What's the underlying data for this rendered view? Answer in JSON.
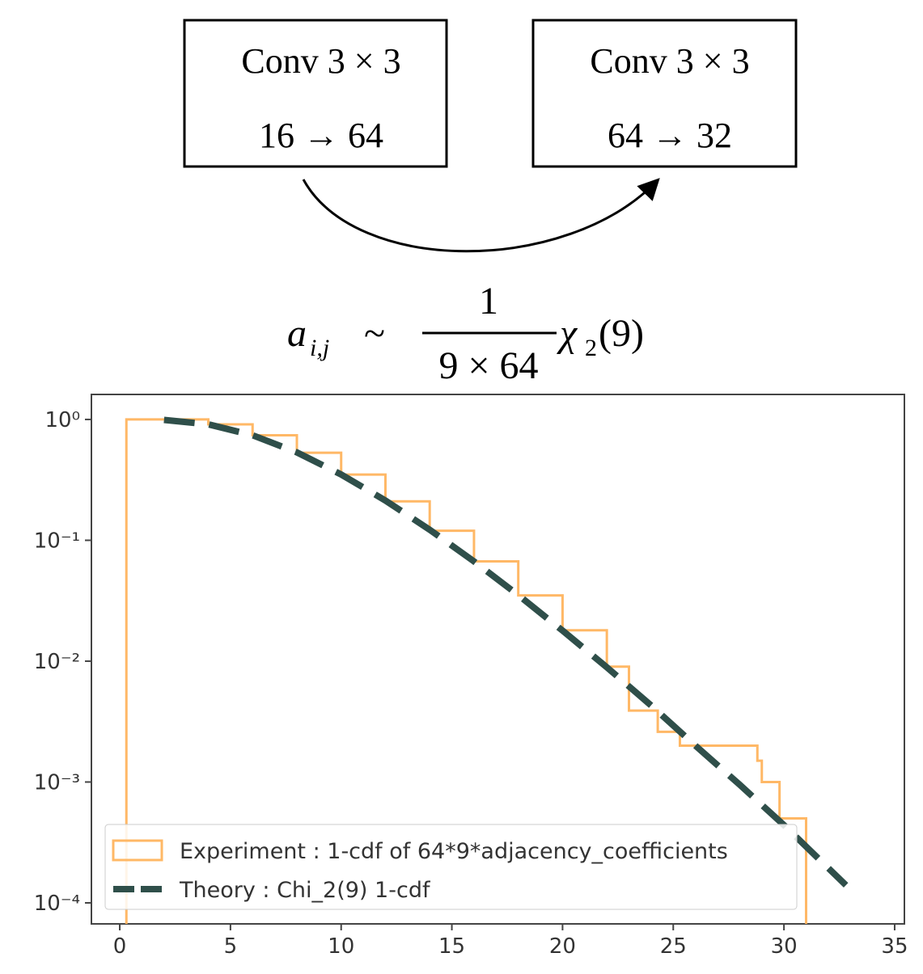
{
  "diagram": {
    "nodes": [
      {
        "label": "Conv 3 × 3",
        "sublabel": "16 → 64"
      },
      {
        "label": "Conv 3 × 3",
        "sublabel": "64 → 32"
      }
    ],
    "formula": {
      "lhs": "a",
      "lhs_sub": "i,j",
      "relation": "~",
      "numerator": "1",
      "denominator": "9 × 64",
      "dist": "χ",
      "dist_sub": "2",
      "arg": "(9)"
    }
  },
  "chart_data": {
    "type": "line",
    "log_y": true,
    "grid": false,
    "legend": "lower left",
    "xlim": [
      -1.28,
      35.44
    ],
    "xticks": [
      0,
      5,
      10,
      15,
      20,
      25,
      30,
      35
    ],
    "ylim": [
      1.61,
      6.7e-05
    ],
    "yticks": [
      {
        "value": 1,
        "label": "10⁰"
      },
      {
        "value": 0.1,
        "label": "10⁻¹"
      },
      {
        "value": 0.01,
        "label": "10⁻²"
      },
      {
        "value": 0.001,
        "label": "10⁻³"
      },
      {
        "value": 0.0001,
        "label": "10⁻⁴"
      }
    ],
    "series": [
      {
        "name": "Experiment : 1-cdf of 64*9*adjacency_coefficients",
        "color": "#ffb866",
        "style": "step",
        "x": [
          0.3,
          3,
          4,
          6,
          8,
          10,
          12,
          14,
          16,
          18,
          20,
          22,
          23,
          24.3,
          25.3,
          28.8,
          29,
          29.8,
          31
        ],
        "values": [
          1,
          1,
          0.91,
          0.74,
          0.53,
          0.35,
          0.21,
          0.12,
          0.067,
          0.035,
          0.018,
          0.009,
          0.0039,
          0.0026,
          0.002,
          0.0015,
          0.001,
          0.0005,
          0.0005
        ]
      },
      {
        "name": "Theory : Chi_2(9) 1-cdf",
        "color": "#2f4f4a",
        "style": "dashed",
        "x": [
          2,
          4,
          6,
          8,
          10,
          12,
          14,
          16,
          18,
          20,
          22,
          24,
          26,
          28,
          30,
          32.8
        ],
        "values": [
          0.9909,
          0.9114,
          0.7399,
          0.5341,
          0.3505,
          0.2133,
          0.1223,
          0.0669,
          0.0352,
          0.0179,
          0.0089,
          0.0043,
          0.002,
          0.00095,
          0.00044,
          0.00014
        ]
      }
    ]
  }
}
